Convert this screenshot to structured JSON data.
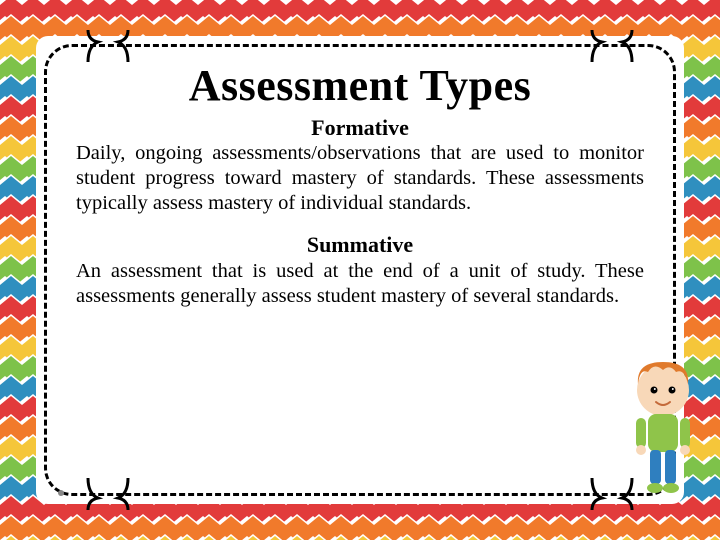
{
  "title": "Assessment Types",
  "sections": [
    {
      "heading": "Formative",
      "body": "Daily, ongoing assessments/observations that are used to monitor student progress toward mastery of standards. These assessments typically assess mastery of individual standards."
    },
    {
      "heading": "Summative",
      "body": "An assessment that is used at the end of a unit of study. These assessments generally assess student mastery of several standards."
    }
  ],
  "style": {
    "chevron_colors": [
      "#e23b3b",
      "#f17a2b",
      "#f5c63a",
      "#7ec24a",
      "#2f8fbf"
    ],
    "background_color": "#ffffff",
    "border_color": "#000000",
    "text_color": "#000000",
    "title_fontsize": 44,
    "heading_fontsize": 22,
    "body_fontsize": 20.5
  },
  "character": {
    "hair_color": "#e07a2c",
    "shirt_color": "#8fc44a",
    "pants_color": "#2f7fbf",
    "skin_color": "#f8d8b8"
  }
}
